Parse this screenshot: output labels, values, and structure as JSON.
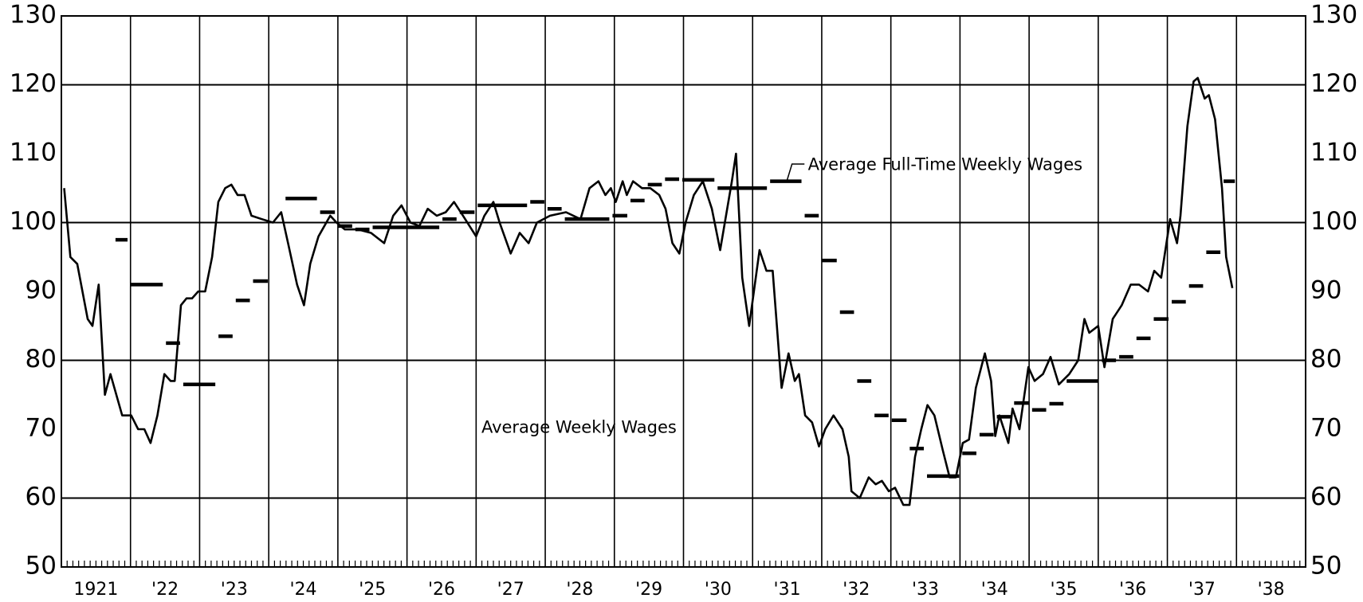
{
  "chart_data": {
    "type": "line",
    "xlim": [
      1921,
      1939
    ],
    "xticks": [
      {
        "value": 1921.5,
        "label": "1921"
      },
      {
        "value": 1922.5,
        "label": "'22"
      },
      {
        "value": 1923.5,
        "label": "'23"
      },
      {
        "value": 1924.5,
        "label": "'24"
      },
      {
        "value": 1925.5,
        "label": "'25"
      },
      {
        "value": 1926.5,
        "label": "'26"
      },
      {
        "value": 1927.5,
        "label": "'27"
      },
      {
        "value": 1928.5,
        "label": "'28"
      },
      {
        "value": 1929.5,
        "label": "'29"
      },
      {
        "value": 1930.5,
        "label": "'30"
      },
      {
        "value": 1931.5,
        "label": "'31"
      },
      {
        "value": 1932.5,
        "label": "'32"
      },
      {
        "value": 1933.5,
        "label": "'33"
      },
      {
        "value": 1934.5,
        "label": "'34"
      },
      {
        "value": 1935.5,
        "label": "'35"
      },
      {
        "value": 1936.5,
        "label": "'36"
      },
      {
        "value": 1937.5,
        "label": "'37"
      },
      {
        "value": 1938.5,
        "label": "'38"
      }
    ],
    "ylim": [
      50,
      130
    ],
    "yticks": [
      50,
      60,
      70,
      80,
      90,
      100,
      110,
      120,
      130
    ],
    "y2lim": [
      50,
      130
    ],
    "y2ticks": [
      50,
      60,
      70,
      80,
      90,
      100,
      110,
      120,
      130
    ],
    "ygrid": [
      60,
      80,
      100,
      120
    ],
    "series": [
      {
        "name": "Average Weekly Wages",
        "color": "#000000",
        "x": [
          1921.04,
          1921.13,
          1921.23,
          1921.38,
          1921.45,
          1921.54,
          1921.63,
          1921.71,
          1921.88,
          1922.01,
          1922.11,
          1922.2,
          1922.29,
          1922.39,
          1922.49,
          1922.58,
          1922.64,
          1922.73,
          1922.81,
          1922.89,
          1922.98,
          1923.08,
          1923.18,
          1923.27,
          1923.37,
          1923.46,
          1923.55,
          1923.65,
          1923.75,
          1923.9,
          1924.06,
          1924.18,
          1924.28,
          1924.41,
          1924.51,
          1924.6,
          1924.72,
          1924.89,
          1924.98,
          1925.1,
          1925.29,
          1925.48,
          1925.67,
          1925.8,
          1925.92,
          1926.05,
          1926.18,
          1926.3,
          1926.43,
          1926.56,
          1926.68,
          1926.81,
          1927.0,
          1927.12,
          1927.25,
          1927.34,
          1927.5,
          1927.63,
          1927.76,
          1927.88,
          1928.07,
          1928.3,
          1928.51,
          1928.64,
          1928.77,
          1928.87,
          1928.95,
          1929.02,
          1929.12,
          1929.18,
          1929.27,
          1929.4,
          1929.52,
          1929.65,
          1929.74,
          1929.84,
          1929.94,
          1930.03,
          1930.15,
          1930.28,
          1930.41,
          1930.53,
          1930.7,
          1930.76,
          1930.85,
          1930.95,
          1931.1,
          1931.2,
          1931.29,
          1931.42,
          1931.52,
          1931.61,
          1931.67,
          1931.76,
          1931.86,
          1931.96,
          1932.05,
          1932.17,
          1932.3,
          1932.39,
          1932.43,
          1932.55,
          1932.68,
          1932.78,
          1932.87,
          1932.97,
          1933.06,
          1933.18,
          1933.27,
          1933.35,
          1933.44,
          1933.53,
          1933.63,
          1933.75,
          1933.85,
          1933.94,
          1934.04,
          1934.13,
          1934.23,
          1934.36,
          1934.45,
          1934.51,
          1934.57,
          1934.7,
          1934.76,
          1934.86,
          1934.99,
          1935.08,
          1935.2,
          1935.31,
          1935.43,
          1935.58,
          1935.71,
          1935.8,
          1935.87,
          1936.0,
          1936.09,
          1936.21,
          1936.34,
          1936.47,
          1936.59,
          1936.72,
          1936.81,
          1936.91,
          1937.04,
          1937.14,
          1937.19,
          1937.29,
          1937.38,
          1937.44,
          1937.54,
          1937.6,
          1937.69,
          1937.79,
          1937.85,
          1937.94
        ],
        "values": [
          105,
          95,
          94,
          86,
          85,
          91,
          75,
          78,
          72,
          72,
          70,
          70,
          68,
          72,
          78,
          77,
          77,
          88,
          89,
          89,
          90,
          90,
          95,
          103,
          105,
          105.5,
          104,
          104,
          101,
          100.5,
          100,
          101.5,
          97,
          91,
          88,
          94,
          98,
          101,
          100,
          99,
          99,
          98.5,
          97,
          101,
          102.5,
          100,
          99.5,
          102,
          101,
          101.5,
          103,
          101,
          98,
          101,
          103,
          100,
          95.5,
          98.5,
          97,
          100,
          101,
          101.5,
          100.5,
          105,
          106,
          104,
          105,
          103,
          106,
          104,
          106,
          105,
          105,
          104,
          102,
          97,
          95.5,
          100,
          104,
          106,
          102,
          96,
          106,
          110,
          92,
          85,
          96,
          93,
          93,
          76,
          81,
          77,
          78,
          72,
          71,
          67.5,
          70,
          72,
          70,
          66,
          61,
          60,
          63,
          62,
          62.5,
          61,
          61.5,
          59,
          59,
          66,
          70,
          73.5,
          72,
          67,
          63,
          63,
          68,
          68.5,
          76,
          81,
          77,
          69,
          72,
          68,
          73,
          70,
          79,
          77,
          78,
          80.5,
          76.5,
          78,
          80,
          86,
          84,
          85,
          79,
          86,
          88,
          91,
          91,
          90,
          93,
          92,
          100.5,
          97,
          101,
          114,
          120.5,
          121,
          118,
          118.5,
          115,
          105,
          95,
          90.5
        ]
      },
      {
        "name": "Average Full-Time Weekly Wages",
        "color": "#000000",
        "type": "step",
        "x": [
          1921.76,
          1921.98,
          1922.49,
          1922.74,
          1923.25,
          1923.5,
          1923.75,
          1924.22,
          1924.72,
          1924.98,
          1925.23,
          1925.48,
          1926.49,
          1926.74,
          1927.0,
          1927.76,
          1928.01,
          1928.26,
          1928.95,
          1929.21,
          1929.46,
          1929.71,
          1929.96,
          1930.47,
          1931.23,
          1931.73,
          1931.98,
          1932.24,
          1932.49,
          1932.74,
          1932.99,
          1933.25,
          1933.5,
          1934.01,
          1934.26,
          1934.51,
          1934.76,
          1935.02,
          1935.27,
          1935.52,
          1936.03,
          1936.28,
          1936.53,
          1936.78,
          1937.04,
          1937.29,
          1937.54,
          1937.79
        ],
        "x_end": [
          1921.98,
          1922.49,
          1922.74,
          1923.25,
          1923.5,
          1923.75,
          1924.01,
          1924.72,
          1924.98,
          1925.23,
          1925.48,
          1926.49,
          1926.74,
          1927.0,
          1927.76,
          1928.01,
          1928.26,
          1928.95,
          1929.21,
          1929.46,
          1929.71,
          1929.96,
          1930.47,
          1931.23,
          1931.73,
          1931.98,
          1932.24,
          1932.49,
          1932.74,
          1932.99,
          1933.25,
          1933.5,
          1934.01,
          1934.26,
          1934.51,
          1934.76,
          1935.02,
          1935.27,
          1935.52,
          1936.03,
          1936.28,
          1936.53,
          1936.78,
          1937.04,
          1937.29,
          1937.54,
          1937.79,
          1938.0
        ],
        "values": [
          97.5,
          91,
          82.5,
          76.5,
          83.5,
          88.7,
          91.5,
          103.5,
          101.5,
          99.5,
          99,
          99.3,
          100.5,
          101.5,
          102.5,
          103,
          102,
          100.5,
          101,
          103.2,
          105.5,
          106.3,
          106.2,
          105,
          106,
          101,
          94.5,
          87,
          77,
          72,
          71.3,
          67.2,
          63.2,
          66.5,
          69.2,
          71.8,
          73.8,
          72.8,
          73.7,
          77,
          80,
          80.5,
          83.2,
          86,
          88.5,
          90.8,
          95.7,
          106
        ]
      }
    ]
  }
}
